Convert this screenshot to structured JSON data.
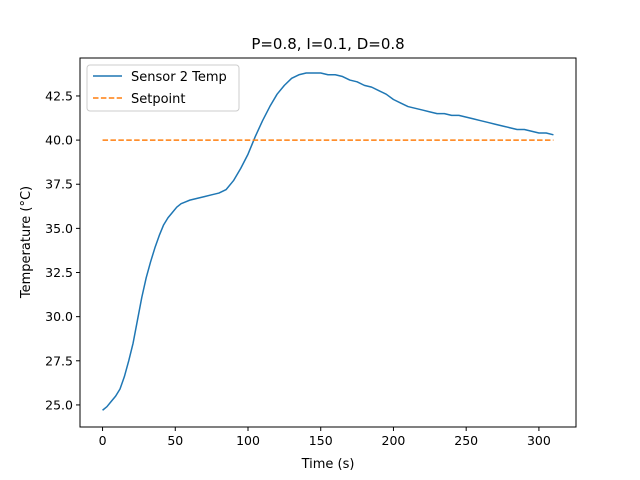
{
  "chart_data": {
    "type": "line",
    "title": "P=0.8, I=0.1, D=0.8",
    "xlabel": "Time (s)",
    "ylabel": "Temperature (°C)",
    "xlim": [
      -15.5,
      325.5
    ],
    "ylim": [
      23.75,
      44.65
    ],
    "xticks": [
      0,
      50,
      100,
      150,
      200,
      250,
      300
    ],
    "yticks": [
      25.0,
      27.5,
      30.0,
      32.5,
      35.0,
      37.5,
      40.0,
      42.5
    ],
    "xtick_labels": [
      "0",
      "50",
      "100",
      "150",
      "200",
      "250",
      "300"
    ],
    "ytick_labels": [
      "25.0",
      "27.5",
      "30.0",
      "32.5",
      "35.0",
      "37.5",
      "40.0",
      "42.5"
    ],
    "grid": false,
    "legend_position": "upper-left",
    "series": [
      {
        "name": "Sensor 2 Temp",
        "color": "#1f77b4",
        "style": "solid",
        "x": [
          0,
          3,
          6,
          9,
          12,
          15,
          18,
          21,
          24,
          27,
          30,
          33,
          36,
          39,
          42,
          45,
          48,
          51,
          54,
          57,
          60,
          65,
          70,
          75,
          80,
          85,
          90,
          95,
          100,
          105,
          110,
          115,
          120,
          125,
          130,
          135,
          140,
          145,
          150,
          155,
          160,
          165,
          170,
          175,
          180,
          185,
          190,
          195,
          200,
          205,
          210,
          215,
          220,
          225,
          230,
          235,
          240,
          245,
          250,
          255,
          260,
          265,
          270,
          275,
          280,
          285,
          290,
          295,
          300,
          305,
          310
        ],
        "y": [
          24.7,
          24.9,
          25.2,
          25.5,
          25.9,
          26.6,
          27.5,
          28.5,
          29.8,
          31.1,
          32.2,
          33.1,
          33.9,
          34.6,
          35.2,
          35.6,
          35.9,
          36.2,
          36.4,
          36.5,
          36.6,
          36.7,
          36.8,
          36.9,
          37.0,
          37.2,
          37.7,
          38.4,
          39.2,
          40.2,
          41.1,
          41.9,
          42.6,
          43.1,
          43.5,
          43.7,
          43.8,
          43.8,
          43.8,
          43.7,
          43.7,
          43.6,
          43.4,
          43.3,
          43.1,
          43.0,
          42.8,
          42.6,
          42.3,
          42.1,
          41.9,
          41.8,
          41.7,
          41.6,
          41.5,
          41.5,
          41.4,
          41.4,
          41.3,
          41.2,
          41.1,
          41.0,
          40.9,
          40.8,
          40.7,
          40.6,
          40.6,
          40.5,
          40.4,
          40.4,
          40.3
        ]
      },
      {
        "name": "Setpoint",
        "color": "#ff7f0e",
        "style": "dashed",
        "x": [
          0,
          310
        ],
        "y": [
          40.0,
          40.0
        ]
      }
    ]
  }
}
